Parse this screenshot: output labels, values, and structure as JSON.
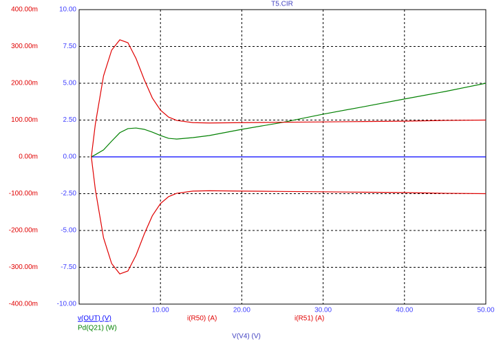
{
  "chart_data": {
    "type": "line",
    "title": "T5.CIR",
    "x_label": "V(V4) (V)",
    "x": [
      1.5,
      2,
      3,
      4,
      5,
      6,
      7,
      8,
      9,
      10,
      11,
      12,
      14,
      16,
      20,
      25,
      30,
      35,
      40,
      45,
      50
    ],
    "series": [
      {
        "name": "v(OUT) (V)",
        "color": "#0000ff",
        "axis": "y2",
        "values": [
          0,
          0,
          0,
          0,
          0,
          0,
          0,
          0,
          0,
          0,
          0,
          0,
          0,
          0,
          0,
          0,
          0,
          0,
          0,
          0,
          0
        ]
      },
      {
        "name": "Pd(Q21) (W)",
        "color": "#008000",
        "axis": "y2",
        "values": [
          0,
          0.15,
          0.47,
          1.07,
          1.64,
          1.92,
          1.96,
          1.87,
          1.68,
          1.45,
          1.26,
          1.21,
          1.31,
          1.45,
          1.87,
          2.34,
          2.9,
          3.41,
          3.93,
          4.44,
          5.0
        ]
      },
      {
        "name": "i(R50) (A)",
        "color": "#e00000",
        "values": [
          0,
          0.09,
          0.22,
          0.29,
          0.318,
          0.31,
          0.267,
          0.21,
          0.16,
          0.127,
          0.108,
          0.099,
          0.093,
          0.092,
          0.093,
          0.094,
          0.095,
          0.096,
          0.097,
          0.099,
          0.1
        ]
      },
      {
        "name": "i(R51) (A)",
        "color": "#e00000",
        "values": [
          0,
          -0.09,
          -0.22,
          -0.29,
          -0.318,
          -0.31,
          -0.267,
          -0.21,
          -0.16,
          -0.127,
          -0.108,
          -0.099,
          -0.093,
          -0.092,
          -0.093,
          -0.094,
          -0.095,
          -0.096,
          -0.097,
          -0.099,
          -0.1
        ]
      }
    ],
    "xlim": [
      0,
      50
    ],
    "xticks": [
      {
        "value": 10,
        "label": "10.00"
      },
      {
        "value": 20,
        "label": "20.00"
      },
      {
        "value": 30,
        "label": "30.00"
      },
      {
        "value": 40,
        "label": "40.00"
      },
      {
        "value": 50,
        "label": "50.00"
      }
    ],
    "ylim": [
      -0.4,
      0.4
    ],
    "yticks": [
      {
        "value": 0.4,
        "label": "400.00m"
      },
      {
        "value": 0.3,
        "label": "300.00m"
      },
      {
        "value": 0.2,
        "label": "200.00m"
      },
      {
        "value": 0.1,
        "label": "100.00m"
      },
      {
        "value": 0,
        "label": "0.00m"
      },
      {
        "value": -0.1,
        "label": "-100.00m"
      },
      {
        "value": -0.2,
        "label": "-200.00m"
      },
      {
        "value": -0.3,
        "label": "-300.00m"
      },
      {
        "value": -0.4,
        "label": "-400.00m"
      }
    ],
    "y2lim": [
      -10,
      10
    ],
    "y2ticks": [
      {
        "value": 10,
        "label": "10.00"
      },
      {
        "value": 7.5,
        "label": "7.50"
      },
      {
        "value": 5,
        "label": "5.00"
      },
      {
        "value": 2.5,
        "label": "2.50"
      },
      {
        "value": 0,
        "label": "0.00"
      },
      {
        "value": -2.5,
        "label": "-2.50"
      },
      {
        "value": -5,
        "label": "-5.00"
      },
      {
        "value": -7.5,
        "label": "-7.50"
      },
      {
        "value": -10,
        "label": "-10.00"
      }
    ],
    "grid": true
  }
}
